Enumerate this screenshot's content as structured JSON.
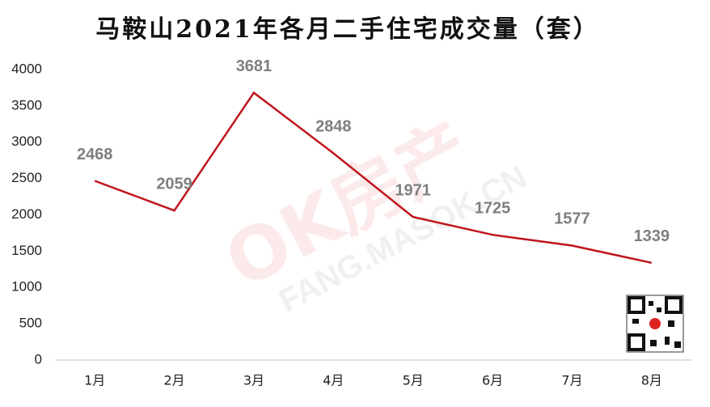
{
  "chart_data": {
    "type": "line",
    "title": "马鞍山2021年各月二手住宅成交量（套）",
    "categories": [
      "1月",
      "2月",
      "3月",
      "4月",
      "5月",
      "6月",
      "7月",
      "8月"
    ],
    "values": [
      2468,
      2059,
      3681,
      2848,
      1971,
      1725,
      1577,
      1339
    ],
    "color": "#c0151d",
    "ylim": [
      0,
      4000
    ],
    "yticks": [
      0,
      500,
      1000,
      1500,
      2000,
      2500,
      3000,
      3500,
      4000
    ],
    "grid": false,
    "watermark": [
      "OK房产",
      "FANG.MASOK.CN"
    ]
  }
}
